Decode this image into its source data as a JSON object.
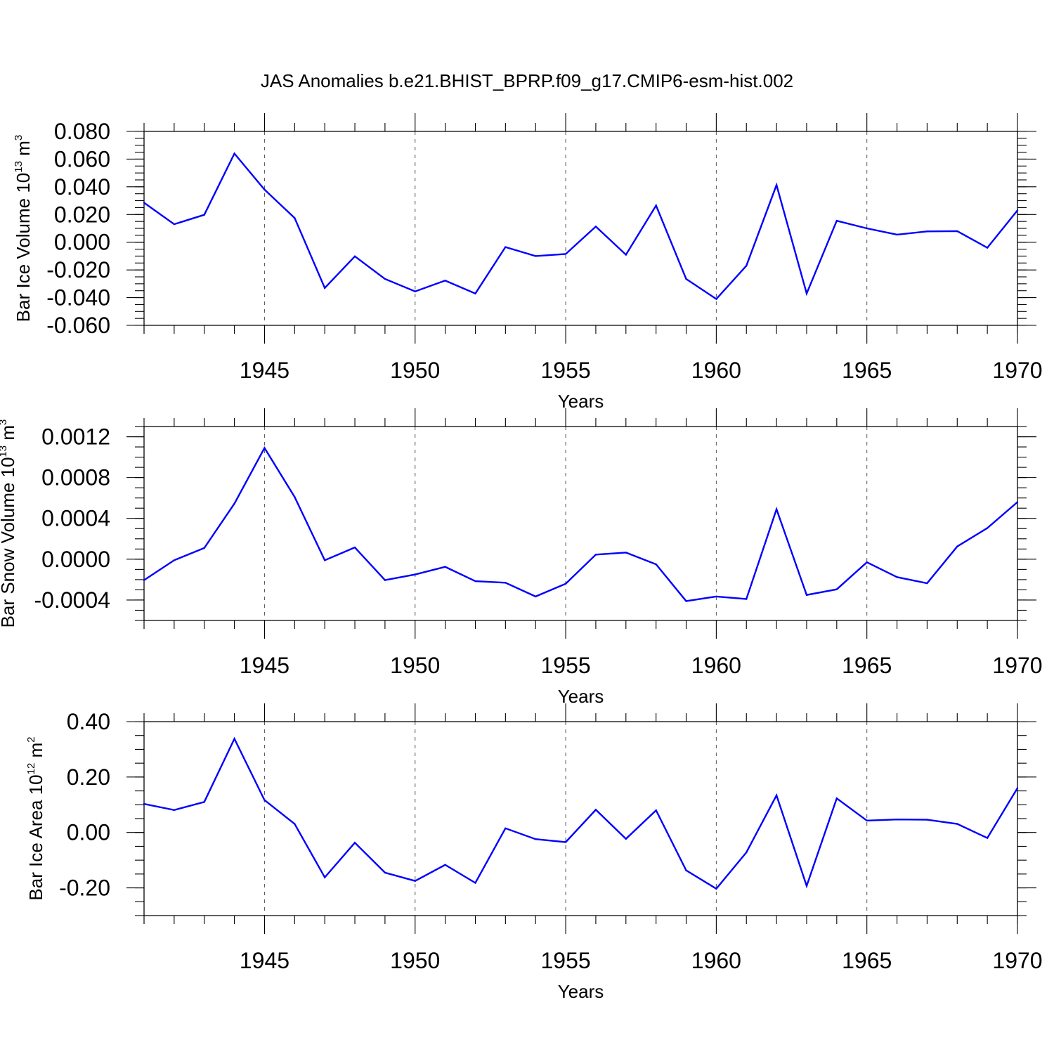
{
  "figure_title": "JAS Anomalies b.e21.BHIST_BPRP.f09_g17.CMIP6-esm-hist.002",
  "line_color": "#0000ff",
  "chart_data": [
    {
      "type": "line",
      "name": "bar-ice-volume",
      "ylabel": "Bar Ice Volume 10",
      "ylabel_exp": "13",
      "ylabel_unit": "m",
      "ylabel_unit_exp": "3",
      "xlabel": "Years",
      "xlim": [
        1941,
        1970
      ],
      "ylim": [
        -0.06,
        0.08
      ],
      "yticks": [
        -0.06,
        -0.04,
        -0.02,
        0.0,
        0.02,
        0.04,
        0.06,
        0.08
      ],
      "ytick_labels": [
        "-0.060",
        "-0.040",
        "-0.020",
        "0.000",
        "0.020",
        "0.040",
        "0.060",
        "0.080"
      ],
      "yminor_step": 0.005,
      "xticks": [
        1945,
        1950,
        1955,
        1960,
        1965,
        1970
      ],
      "xtick_labels": [
        "1945",
        "1950",
        "1955",
        "1960",
        "1965",
        "1970"
      ],
      "grid_x": [
        1945,
        1950,
        1955,
        1960,
        1965
      ],
      "x": [
        1941,
        1942,
        1943,
        1944,
        1945,
        1946,
        1947,
        1948,
        1949,
        1950,
        1951,
        1952,
        1953,
        1954,
        1955,
        1956,
        1957,
        1958,
        1959,
        1960,
        1961,
        1962,
        1963,
        1964,
        1965,
        1966,
        1967,
        1968,
        1969,
        1970
      ],
      "values": [
        0.0285,
        0.013,
        0.0198,
        0.064,
        0.038,
        0.0175,
        -0.033,
        -0.0102,
        -0.0265,
        -0.0355,
        -0.0277,
        -0.037,
        -0.0035,
        -0.01,
        -0.0085,
        0.0113,
        -0.009,
        0.0265,
        -0.0265,
        -0.041,
        -0.017,
        0.0413,
        -0.037,
        0.0155,
        0.01,
        0.0055,
        0.0078,
        0.008,
        -0.004,
        0.023
      ]
    },
    {
      "type": "line",
      "name": "bar-snow-volume",
      "ylabel": "Bar Snow Volume 10",
      "ylabel_exp": "13",
      "ylabel_unit": "m",
      "ylabel_unit_exp": "3",
      "xlabel": "Years",
      "xlim": [
        1941,
        1970
      ],
      "ylim": [
        -0.0006,
        0.0013
      ],
      "yticks": [
        -0.0004,
        0.0,
        0.0004,
        0.0008,
        0.0012
      ],
      "ytick_labels": [
        "-0.0004",
        "0.0000",
        "0.0004",
        "0.0008",
        "0.0012"
      ],
      "yminor_step": 0.0001,
      "xticks": [
        1945,
        1950,
        1955,
        1960,
        1965,
        1970
      ],
      "xtick_labels": [
        "1945",
        "1950",
        "1955",
        "1960",
        "1965",
        "1970"
      ],
      "grid_x": [
        1945,
        1950,
        1955,
        1960,
        1965
      ],
      "x": [
        1941,
        1942,
        1943,
        1944,
        1945,
        1946,
        1947,
        1948,
        1949,
        1950,
        1951,
        1952,
        1953,
        1954,
        1955,
        1956,
        1957,
        1958,
        1959,
        1960,
        1961,
        1962,
        1963,
        1964,
        1965,
        1966,
        1967,
        1968,
        1969,
        1970
      ],
      "values": [
        -0.000205,
        -1e-05,
        0.00011,
        0.000545,
        0.00109,
        0.00061,
        -1e-05,
        0.000115,
        -0.000205,
        -0.00015,
        -7.5e-05,
        -0.000215,
        -0.00023,
        -0.000365,
        -0.00024,
        4.5e-05,
        6.5e-05,
        -5e-05,
        -0.00041,
        -0.000365,
        -0.00039,
        0.00049,
        -0.00035,
        -0.000295,
        -3e-05,
        -0.000175,
        -0.000235,
        0.000125,
        0.000305,
        0.00056
      ]
    },
    {
      "type": "line",
      "name": "bar-ice-area",
      "ylabel": "Bar Ice Area 10",
      "ylabel_exp": "12",
      "ylabel_unit": "m",
      "ylabel_unit_exp": "2",
      "xlabel": "Years",
      "xlim": [
        1941,
        1970
      ],
      "ylim": [
        -0.3,
        0.4
      ],
      "yticks": [
        -0.2,
        0.0,
        0.2,
        0.4
      ],
      "ytick_labels": [
        "-0.20",
        "0.00",
        "0.20",
        "0.40"
      ],
      "yminor_step": 0.05,
      "xticks": [
        1945,
        1950,
        1955,
        1960,
        1965,
        1970
      ],
      "xtick_labels": [
        "1945",
        "1950",
        "1955",
        "1960",
        "1965",
        "1970"
      ],
      "grid_x": [
        1945,
        1950,
        1955,
        1960,
        1965
      ],
      "x": [
        1941,
        1942,
        1943,
        1944,
        1945,
        1946,
        1947,
        1948,
        1949,
        1950,
        1951,
        1952,
        1953,
        1954,
        1955,
        1956,
        1957,
        1958,
        1959,
        1960,
        1961,
        1962,
        1963,
        1964,
        1965,
        1966,
        1967,
        1968,
        1969,
        1970
      ],
      "values": [
        0.103,
        0.081,
        0.11,
        0.338,
        0.117,
        0.031,
        -0.162,
        -0.037,
        -0.145,
        -0.175,
        -0.117,
        -0.182,
        0.015,
        -0.024,
        -0.035,
        0.082,
        -0.023,
        0.08,
        -0.137,
        -0.203,
        -0.072,
        0.134,
        -0.193,
        0.123,
        0.043,
        0.047,
        0.046,
        0.031,
        -0.02,
        0.16
      ]
    }
  ]
}
